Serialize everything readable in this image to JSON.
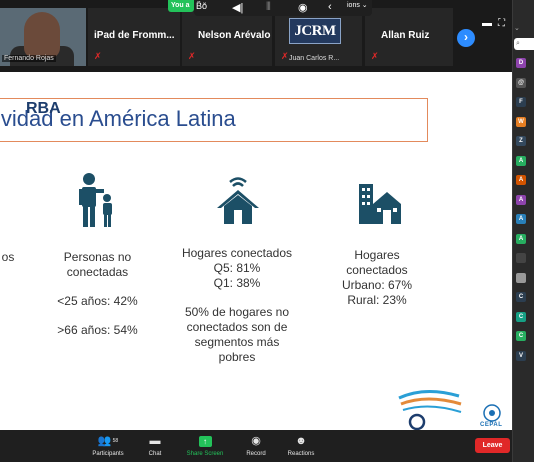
{
  "gallery": {
    "tiles": [
      {
        "name": "",
        "subtitle": "Fernando Rojas"
      },
      {
        "name": "iPad de Fromm...",
        "subtitle": ""
      },
      {
        "name": "Nelson Arévalo",
        "subtitle": ""
      },
      {
        "name": "",
        "subtitle": "Juan Carlos R...",
        "logo": "JCRM"
      },
      {
        "name": "Allan Ruiz",
        "subtitle": ""
      }
    ],
    "next_icon": "chevron-right-icon"
  },
  "share_toolbar": {
    "pill": "You a",
    "options_label": "ions ⌄"
  },
  "slide": {
    "title": "ividad en América Latina",
    "columns": [
      {
        "lines": [
          "os"
        ]
      },
      {
        "lines": [
          "Personas no",
          "conectadas"
        ],
        "stats": [
          "<25 años: 42%",
          ">66 años: 54%"
        ]
      },
      {
        "lines": [
          "Hogares conectados",
          "Q5: 81%",
          "Q1: 38%"
        ],
        "note": [
          "50% de hogares no",
          "conectados son de",
          "segmentos más",
          "pobres"
        ]
      },
      {
        "lines": [
          "Hogares",
          "conectados",
          "Urbano: 67%",
          "Rural: 23%"
        ]
      }
    ],
    "logos": {
      "orba": "RBA",
      "cepal": "CEPAL"
    }
  },
  "toolbar": {
    "participants_count": "58",
    "participants": "Participants",
    "chat": "Chat",
    "share_screen": "Share Screen",
    "record": "Record",
    "reactions": "Reactions",
    "leave": "Leave"
  },
  "side_panel": {
    "avatars": [
      {
        "letter": "D",
        "color": "#8e44ad"
      },
      {
        "letter": "@",
        "color": "#555555"
      },
      {
        "letter": "F",
        "color": "#2c3e50"
      },
      {
        "letter": "W",
        "color": "#e67e22"
      },
      {
        "letter": "Z",
        "color": "#34495e"
      },
      {
        "letter": "A",
        "color": "#27ae60"
      },
      {
        "letter": "A",
        "color": "#d35400"
      },
      {
        "letter": "A",
        "color": "#8e44ad"
      },
      {
        "letter": "A",
        "color": "#2980b9"
      },
      {
        "letter": "A",
        "color": "#27ae60"
      },
      {
        "letter": "",
        "color": "#444444"
      },
      {
        "letter": "",
        "color": "#999999"
      },
      {
        "letter": "C",
        "color": "#2c3e50"
      },
      {
        "letter": "C",
        "color": "#16a085"
      },
      {
        "letter": "C",
        "color": "#27ae60"
      },
      {
        "letter": "V",
        "color": "#2c3e50"
      }
    ]
  },
  "colors": {
    "accent_green": "#23c25a",
    "leave_red": "#e02828",
    "title_blue": "#2a4d8f",
    "title_border": "#e38a5c",
    "icon_teal": "#1c4f66"
  }
}
